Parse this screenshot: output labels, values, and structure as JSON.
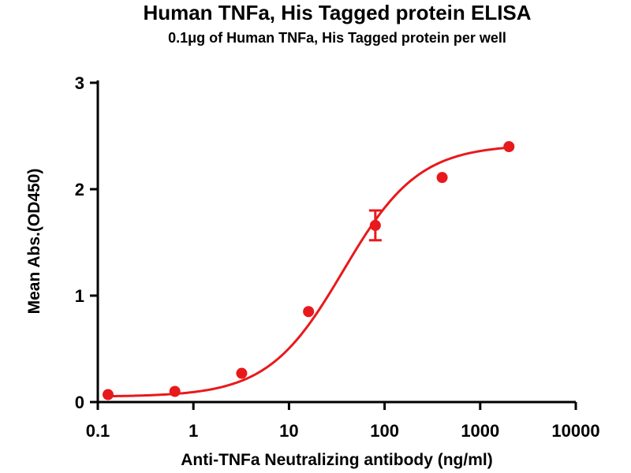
{
  "chart_data": {
    "type": "scatter",
    "title": "Human TNFa, His Tagged protein ELISA",
    "subtitle": "0.1μg of Human TNFa, His Tagged protein per well",
    "xlabel": "Anti-TNFa Neutralizing antibody (ng/ml)",
    "ylabel": "Mean Abs.(OD450)",
    "x_scale": "log",
    "xlim": [
      0.1,
      10000
    ],
    "ylim": [
      0,
      3
    ],
    "x_ticks": [
      0.1,
      1,
      10,
      100,
      1000,
      10000
    ],
    "x_tick_labels": [
      "0.1",
      "1",
      "10",
      "100",
      "1000",
      "10000"
    ],
    "y_ticks": [
      0,
      1,
      2,
      3
    ],
    "y_tick_labels": [
      "0",
      "1",
      "2",
      "3"
    ],
    "grid": false,
    "color": "#e8191c",
    "series": [
      {
        "x": [
          0.128,
          0.64,
          3.2,
          16,
          80,
          400,
          2000
        ],
        "y": [
          0.07,
          0.1,
          0.27,
          0.85,
          1.66,
          2.11,
          2.4
        ],
        "error": [
          0,
          0,
          0,
          0,
          0.14,
          0,
          0
        ]
      }
    ],
    "fit": {
      "model": "4PL",
      "bottom": 0.05,
      "top": 2.42,
      "ec50": 37,
      "hill": 1.1
    }
  }
}
